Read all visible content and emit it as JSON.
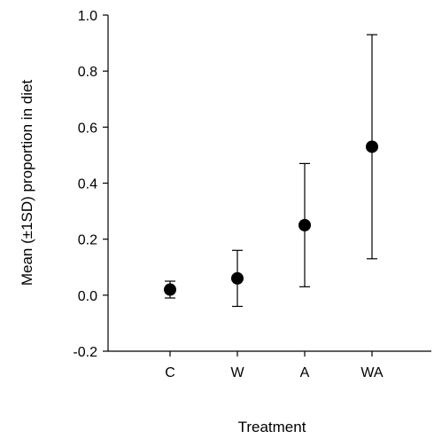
{
  "chart_data": {
    "type": "scatter",
    "title": "",
    "xlabel": "Treatment",
    "ylabel": "Mean (±1SD) proportion in diet",
    "categories": [
      "C",
      "W",
      "A",
      "WA"
    ],
    "series": [
      {
        "means": [
          0.02,
          0.06,
          0.25,
          0.53
        ],
        "sd_lower": [
          -0.01,
          -0.04,
          0.03,
          0.13
        ],
        "sd_upper": [
          0.05,
          0.16,
          0.47,
          0.93
        ]
      }
    ],
    "ylim": [
      -0.2,
      1.0
    ],
    "yticks": [
      -0.2,
      0.0,
      0.2,
      0.4,
      0.6,
      0.8,
      1.0
    ],
    "ytick_labels": [
      "-0.2",
      "0.0",
      "0.2",
      "0.4",
      "0.6",
      "0.8",
      "1.0"
    ],
    "grid": false,
    "legend": "none",
    "marker_color": "#000000"
  }
}
